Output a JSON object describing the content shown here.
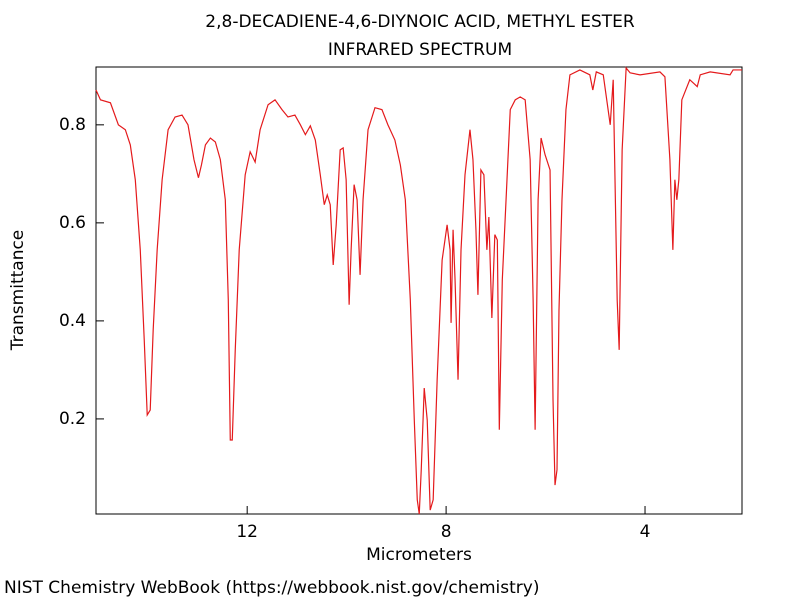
{
  "chart_data": {
    "type": "line",
    "title": "2,8-DECADIENE-4,6-DIYNOIC ACID, METHYL ESTER",
    "subtitle": "INFRARED SPECTRUM",
    "x_label": "Micrometers",
    "y_label": "Transmittance",
    "source": "NIST Chemistry WebBook (https://webbook.nist.gov/chemistry)",
    "color": "#e41a1c",
    "xlim": [
      15.04,
      2.05
    ],
    "ylim": [
      0.006,
      0.918
    ],
    "xticks": [
      12,
      8,
      4
    ],
    "yticks": [
      0.2,
      0.4,
      0.6,
      0.8
    ],
    "x": [
      15.04,
      14.95,
      14.75,
      14.59,
      14.45,
      14.35,
      14.25,
      14.15,
      14.07,
      14.01,
      13.95,
      13.89,
      13.81,
      13.71,
      13.59,
      13.45,
      13.31,
      13.19,
      13.07,
      12.98,
      12.92,
      12.84,
      12.74,
      12.64,
      12.54,
      12.44,
      12.38,
      12.34,
      12.3,
      12.24,
      12.16,
      12.04,
      11.94,
      11.84,
      11.74,
      11.58,
      11.44,
      11.3,
      11.18,
      11.04,
      10.93,
      10.83,
      10.73,
      10.63,
      10.53,
      10.45,
      10.39,
      10.33,
      10.27,
      10.21,
      10.13,
      10.07,
      10.01,
      9.95,
      9.91,
      9.85,
      9.79,
      9.73,
      9.67,
      9.57,
      9.43,
      9.29,
      9.17,
      9.03,
      8.92,
      8.82,
      8.72,
      8.64,
      8.58,
      8.54,
      8.5,
      8.44,
      8.38,
      8.32,
      8.26,
      8.18,
      8.08,
      7.98,
      7.92,
      7.9,
      7.86,
      7.82,
      7.76,
      7.7,
      7.62,
      7.52,
      7.46,
      7.4,
      7.36,
      7.3,
      7.24,
      7.18,
      7.14,
      7.08,
      7.02,
      6.97,
      6.93,
      6.87,
      6.79,
      6.71,
      6.61,
      6.51,
      6.41,
      6.31,
      6.25,
      6.21,
      6.15,
      6.09,
      6.01,
      5.91,
      5.85,
      5.81,
      5.77,
      5.73,
      5.67,
      5.59,
      5.51,
      5.31,
      5.11,
      5.05,
      4.98,
      4.84,
      4.7,
      4.64,
      4.56,
      4.52,
      4.46,
      4.38,
      4.3,
      4.1,
      3.7,
      3.6,
      3.5,
      3.44,
      3.4,
      3.36,
      3.32,
      3.26,
      3.1,
      2.95,
      2.89,
      2.69,
      2.29,
      2.23,
      2.05
    ],
    "values": [
      0.871,
      0.851,
      0.845,
      0.8,
      0.79,
      0.759,
      0.688,
      0.545,
      0.361,
      0.208,
      0.218,
      0.382,
      0.545,
      0.688,
      0.79,
      0.816,
      0.82,
      0.8,
      0.729,
      0.692,
      0.718,
      0.759,
      0.773,
      0.765,
      0.729,
      0.647,
      0.443,
      0.157,
      0.157,
      0.341,
      0.545,
      0.698,
      0.745,
      0.724,
      0.79,
      0.841,
      0.851,
      0.831,
      0.816,
      0.82,
      0.8,
      0.78,
      0.798,
      0.769,
      0.698,
      0.637,
      0.657,
      0.637,
      0.514,
      0.596,
      0.749,
      0.753,
      0.688,
      0.433,
      0.545,
      0.678,
      0.647,
      0.494,
      0.647,
      0.79,
      0.835,
      0.831,
      0.8,
      0.769,
      0.718,
      0.647,
      0.443,
      0.198,
      0.035,
      0.006,
      0.096,
      0.263,
      0.198,
      0.014,
      0.035,
      0.28,
      0.524,
      0.596,
      0.545,
      0.396,
      0.586,
      0.484,
      0.28,
      0.545,
      0.698,
      0.79,
      0.729,
      0.586,
      0.453,
      0.708,
      0.698,
      0.545,
      0.612,
      0.406,
      0.576,
      0.565,
      0.178,
      0.484,
      0.657,
      0.831,
      0.851,
      0.857,
      0.851,
      0.729,
      0.443,
      0.178,
      0.647,
      0.773,
      0.739,
      0.708,
      0.239,
      0.065,
      0.096,
      0.422,
      0.647,
      0.831,
      0.902,
      0.912,
      0.902,
      0.871,
      0.908,
      0.902,
      0.8,
      0.892,
      0.443,
      0.341,
      0.749,
      0.916,
      0.906,
      0.902,
      0.908,
      0.898,
      0.729,
      0.545,
      0.688,
      0.647,
      0.688,
      0.851,
      0.892,
      0.878,
      0.902,
      0.908,
      0.902,
      0.912,
      0.912
    ]
  }
}
